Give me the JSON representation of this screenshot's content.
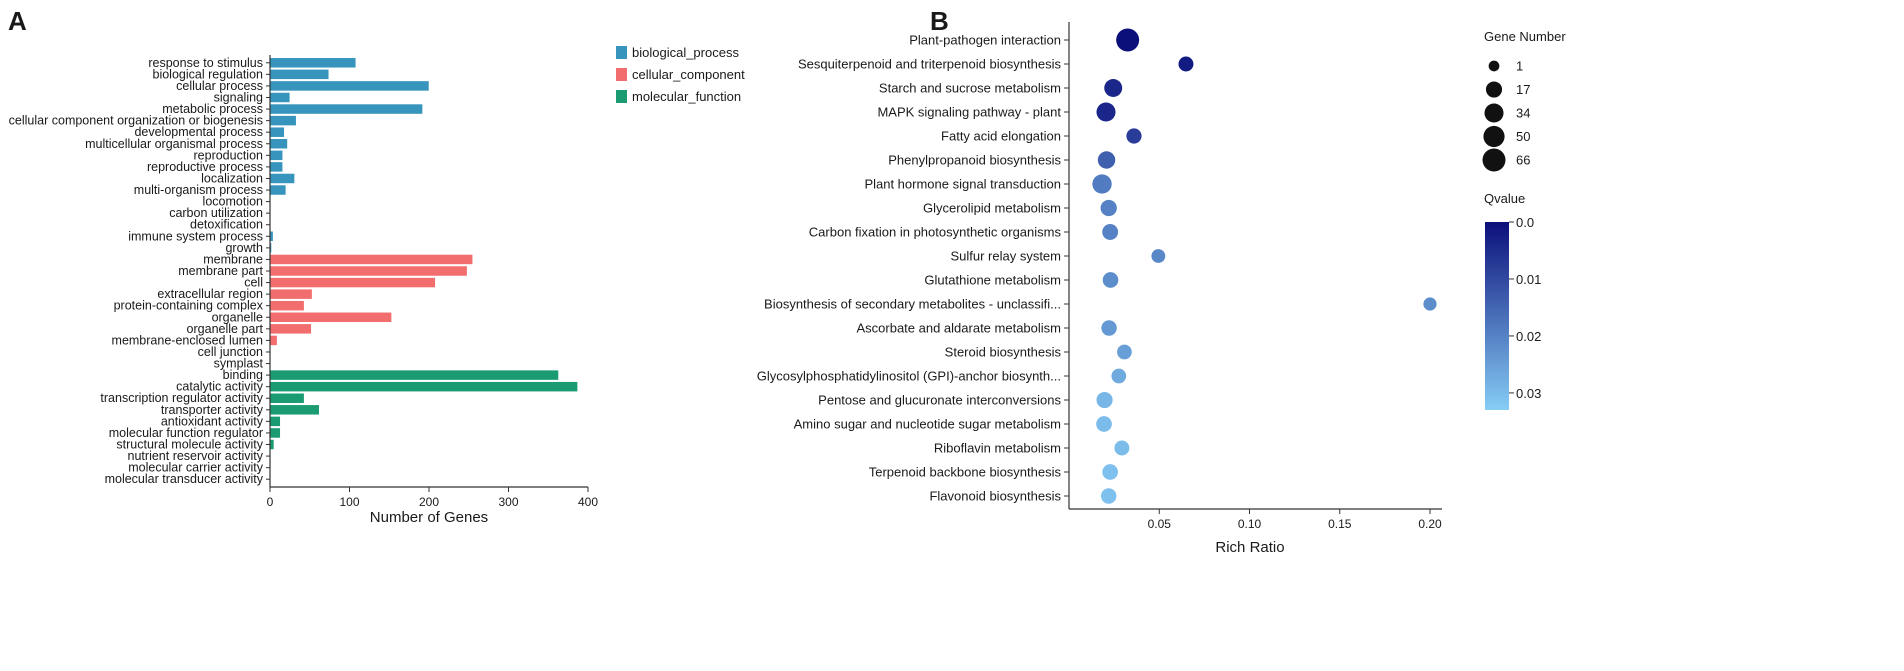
{
  "panels": {
    "a": "A",
    "b": "B"
  },
  "chart_data": [
    {
      "type": "bar",
      "orientation": "horizontal",
      "panel": "A",
      "xlabel": "Number of Genes",
      "xlim": [
        0,
        400
      ],
      "xticks": [
        0,
        100,
        200,
        300,
        400
      ],
      "legend_position": "top-right",
      "colors": {
        "biological_process": "#3694bd",
        "cellular_component": "#f26d6d",
        "molecular_function": "#1a9b72"
      },
      "legend": [
        {
          "key": "biological_process",
          "label": "biological_process"
        },
        {
          "key": "cellular_component",
          "label": "cellular_component"
        },
        {
          "key": "molecular_function",
          "label": "molecular_function"
        }
      ],
      "categories": [
        {
          "label": "response to stimulus",
          "value": 107,
          "group": "biological_process"
        },
        {
          "label": "biological regulation",
          "value": 73,
          "group": "biological_process"
        },
        {
          "label": "cellular process",
          "value": 199,
          "group": "biological_process"
        },
        {
          "label": "signaling",
          "value": 24,
          "group": "biological_process"
        },
        {
          "label": "metabolic process",
          "value": 191,
          "group": "biological_process"
        },
        {
          "label": "cellular component organization or biogenesis",
          "value": 32,
          "group": "biological_process"
        },
        {
          "label": "developmental process",
          "value": 17,
          "group": "biological_process"
        },
        {
          "label": "multicellular organismal process",
          "value": 21,
          "group": "biological_process"
        },
        {
          "label": "reproduction",
          "value": 15,
          "group": "biological_process"
        },
        {
          "label": "reproductive process",
          "value": 15,
          "group": "biological_process"
        },
        {
          "label": "localization",
          "value": 30,
          "group": "biological_process"
        },
        {
          "label": "multi-organism process",
          "value": 19,
          "group": "biological_process"
        },
        {
          "label": "locomotion",
          "value": 0,
          "group": "biological_process"
        },
        {
          "label": "carbon utilization",
          "value": 0,
          "group": "biological_process"
        },
        {
          "label": "detoxification",
          "value": 0,
          "group": "biological_process"
        },
        {
          "label": "immune system process",
          "value": 3,
          "group": "biological_process"
        },
        {
          "label": "growth",
          "value": 1,
          "group": "biological_process"
        },
        {
          "label": "membrane",
          "value": 254,
          "group": "cellular_component"
        },
        {
          "label": "membrane part",
          "value": 247,
          "group": "cellular_component"
        },
        {
          "label": "cell",
          "value": 207,
          "group": "cellular_component"
        },
        {
          "label": "extracellular region",
          "value": 52,
          "group": "cellular_component"
        },
        {
          "label": "protein-containing complex",
          "value": 42,
          "group": "cellular_component"
        },
        {
          "label": "organelle",
          "value": 152,
          "group": "cellular_component"
        },
        {
          "label": "organelle part",
          "value": 51,
          "group": "cellular_component"
        },
        {
          "label": "membrane-enclosed lumen",
          "value": 8,
          "group": "cellular_component"
        },
        {
          "label": "cell junction",
          "value": 0,
          "group": "cellular_component"
        },
        {
          "label": "symplast",
          "value": 0,
          "group": "cellular_component"
        },
        {
          "label": "binding",
          "value": 362,
          "group": "molecular_function"
        },
        {
          "label": "catalytic activity",
          "value": 386,
          "group": "molecular_function"
        },
        {
          "label": "transcription regulator activity",
          "value": 42,
          "group": "molecular_function"
        },
        {
          "label": "transporter activity",
          "value": 61,
          "group": "molecular_function"
        },
        {
          "label": "antioxidant activity",
          "value": 12,
          "group": "molecular_function"
        },
        {
          "label": "molecular function regulator",
          "value": 12,
          "group": "molecular_function"
        },
        {
          "label": "structural molecule activity",
          "value": 4,
          "group": "molecular_function"
        },
        {
          "label": "nutrient reservoir activity",
          "value": 0,
          "group": "molecular_function"
        },
        {
          "label": "molecular carrier activity",
          "value": 0,
          "group": "molecular_function"
        },
        {
          "label": "molecular transducer activity",
          "value": 0,
          "group": "molecular_function"
        }
      ]
    },
    {
      "type": "scatter",
      "panel": "B",
      "xlabel": "Rich Ratio",
      "xlim": [
        0.0,
        0.2
      ],
      "xticks": [
        0.05,
        0.1,
        0.15,
        0.2
      ],
      "xtick_labels": [
        "0.05",
        "0.10",
        "0.15",
        "0.20"
      ],
      "size_legend": {
        "title": "Gene Number",
        "values": [
          1,
          17,
          34,
          50,
          66
        ],
        "labels": [
          "1",
          "17",
          "34",
          "50",
          "66"
        ]
      },
      "color_legend": {
        "title": "Qvalue",
        "min": 0.0,
        "max": 0.033,
        "ticks": [
          0.0,
          0.01,
          0.02,
          0.03
        ],
        "tick_labels": [
          "0.0",
          "0.01",
          "0.02",
          "0.03"
        ],
        "low_color": "#0b0f7a",
        "high_color": "#86cdf5"
      },
      "points": [
        {
          "label": "Plant-pathogen interaction",
          "x": 0.0325,
          "genes": 66,
          "q": 0.0
        },
        {
          "label": "Sesquiterpenoid and triterpenoid biosynthesis",
          "x": 0.0648,
          "genes": 12,
          "q": 0.002
        },
        {
          "label": "Starch and sucrose metabolism",
          "x": 0.0245,
          "genes": 27,
          "q": 0.004
        },
        {
          "label": "MAPK signaling pathway - plant",
          "x": 0.0205,
          "genes": 34,
          "q": 0.004
        },
        {
          "label": "Fatty acid elongation",
          "x": 0.036,
          "genes": 13,
          "q": 0.008
        },
        {
          "label": "Phenylpropanoid biosynthesis",
          "x": 0.0208,
          "genes": 24,
          "q": 0.014
        },
        {
          "label": "Plant hormone signal transduction",
          "x": 0.0183,
          "genes": 36,
          "q": 0.019
        },
        {
          "label": "Glycerolipid metabolism",
          "x": 0.022,
          "genes": 18,
          "q": 0.02
        },
        {
          "label": "Carbon fixation in photosynthetic organisms",
          "x": 0.0228,
          "genes": 16,
          "q": 0.02
        },
        {
          "label": "Sulfur relay system",
          "x": 0.0495,
          "genes": 8,
          "q": 0.021
        },
        {
          "label": "Glutathione metabolism",
          "x": 0.023,
          "genes": 15,
          "q": 0.022
        },
        {
          "label": "Biosynthesis of secondary metabolites - unclassifi...",
          "x": 0.2,
          "genes": 6,
          "q": 0.022
        },
        {
          "label": "Ascorbate and aldarate metabolism",
          "x": 0.0222,
          "genes": 14,
          "q": 0.024
        },
        {
          "label": "Steroid biosynthesis",
          "x": 0.0307,
          "genes": 11,
          "q": 0.025
        },
        {
          "label": "Glycosylphosphatidylinositol (GPI)-anchor biosynth...",
          "x": 0.0276,
          "genes": 11,
          "q": 0.027
        },
        {
          "label": "Pentose and glucuronate interconversions",
          "x": 0.0197,
          "genes": 17,
          "q": 0.029
        },
        {
          "label": "Amino sugar and nucleotide sugar metabolism",
          "x": 0.0194,
          "genes": 15,
          "q": 0.03
        },
        {
          "label": "Riboflavin metabolism",
          "x": 0.0293,
          "genes": 12,
          "q": 0.03
        },
        {
          "label": "Terpenoid backbone biosynthesis",
          "x": 0.0228,
          "genes": 15,
          "q": 0.031
        },
        {
          "label": "Flavonoid biosynthesis",
          "x": 0.022,
          "genes": 14,
          "q": 0.031
        }
      ]
    }
  ]
}
